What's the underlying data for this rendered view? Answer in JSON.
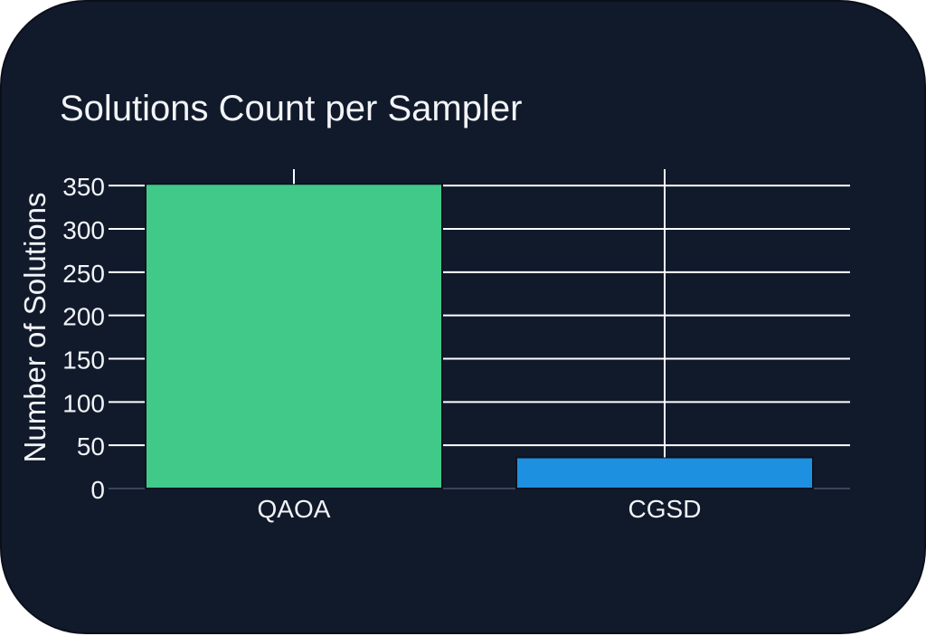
{
  "chart_data": {
    "type": "bar",
    "title": "Solutions Count per Sampler",
    "xlabel": "",
    "ylabel": "Number of Solutions",
    "categories": [
      "QAOA",
      "CGSD"
    ],
    "values": [
      352,
      36
    ],
    "error_bars": [
      {
        "low": 352,
        "high": 369
      },
      {
        "low": 36,
        "high": 369
      }
    ],
    "ylim": [
      0,
      369
    ],
    "yticks": [
      0,
      50,
      100,
      150,
      200,
      250,
      300,
      350
    ],
    "grid": true,
    "colors": [
      "#41c98a",
      "#1e90e0"
    ]
  },
  "theme": {
    "background": "#111a2b",
    "text_color": "#f2f4f7",
    "grid_color": "#ffffff"
  }
}
